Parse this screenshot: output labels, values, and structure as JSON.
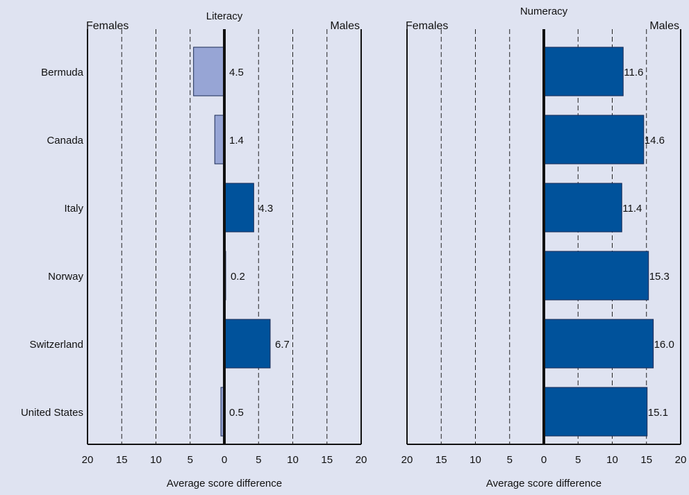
{
  "chart_data": [
    {
      "type": "bar",
      "orientation": "horizontal",
      "title": "Literacy",
      "xlabel": "Average score difference",
      "left_label": "Females",
      "right_label": "Males",
      "xlim": [
        -20,
        20
      ],
      "tick_values": [
        -20,
        -15,
        -10,
        -5,
        0,
        5,
        10,
        15,
        20
      ],
      "tick_labels": [
        "20",
        "15",
        "10",
        "5",
        "0",
        "5",
        "10",
        "15",
        "20"
      ],
      "categories": [
        "Bermuda",
        "Canada",
        "Italy",
        "Norway",
        "Switzerland",
        "United States"
      ],
      "values": [
        -4.5,
        -1.4,
        4.3,
        0.2,
        6.7,
        -0.5
      ],
      "value_labels": [
        "4.5",
        "1.4",
        "4.3",
        "0.2",
        "6.7",
        "0.5"
      ],
      "grid": "vertical dashed",
      "colors": {
        "positive": "#00529b",
        "negative": "#97a5d5"
      }
    },
    {
      "type": "bar",
      "orientation": "horizontal",
      "title": "Numeracy",
      "xlabel": "Average score difference",
      "left_label": "Females",
      "right_label": "Males",
      "xlim": [
        -20,
        20
      ],
      "tick_values": [
        -20,
        -15,
        -10,
        -5,
        0,
        5,
        10,
        15,
        20
      ],
      "tick_labels": [
        "20",
        "15",
        "10",
        "5",
        "0",
        "5",
        "10",
        "15",
        "20"
      ],
      "categories": [
        "Bermuda",
        "Canada",
        "Italy",
        "Norway",
        "Switzerland",
        "United States"
      ],
      "values": [
        11.6,
        14.6,
        11.4,
        15.3,
        16.0,
        15.1
      ],
      "value_labels": [
        "11.6",
        "14.6",
        "11.4",
        "15.3",
        "16.0",
        "15.1"
      ],
      "grid": "vertical dashed",
      "colors": {
        "positive": "#00529b",
        "negative": "#97a5d5"
      }
    }
  ]
}
